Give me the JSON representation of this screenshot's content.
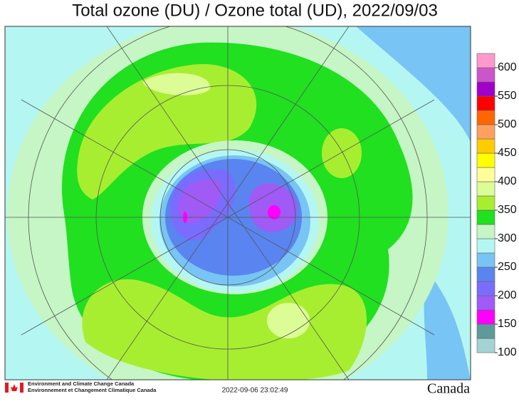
{
  "title": "Total ozone (DU) / Ozone total (UD), 2022/09/03",
  "colorbar": {
    "bounds": [
      100,
      125,
      150,
      175,
      200,
      225,
      250,
      275,
      300,
      325,
      350,
      375,
      400,
      425,
      450,
      475,
      500,
      525,
      550,
      575,
      600,
      625
    ],
    "colors": [
      "#a3d3d3",
      "#5f9a9a",
      "#ff00ff",
      "#a05af5",
      "#7a6cff",
      "#5a84f0",
      "#78c4f5",
      "#b4f7f2",
      "#c6f5c6",
      "#20e020",
      "#a8ee30",
      "#dcfc96",
      "#ffff99",
      "#ffff00",
      "#ffcc00",
      "#ffa060",
      "#ff6600",
      "#ff0000",
      "#a000c8",
      "#cc55cc",
      "#ff99cc"
    ],
    "ticks": [
      100,
      150,
      200,
      250,
      300,
      350,
      400,
      450,
      500,
      550,
      600
    ]
  },
  "footer": {
    "agency_en": "Environment and Climate Change Canada",
    "agency_fr": "Environnement et Changement Climatique Canada",
    "timestamp": "2022-09-06 23:02:49",
    "wordmark": "Canada"
  }
}
